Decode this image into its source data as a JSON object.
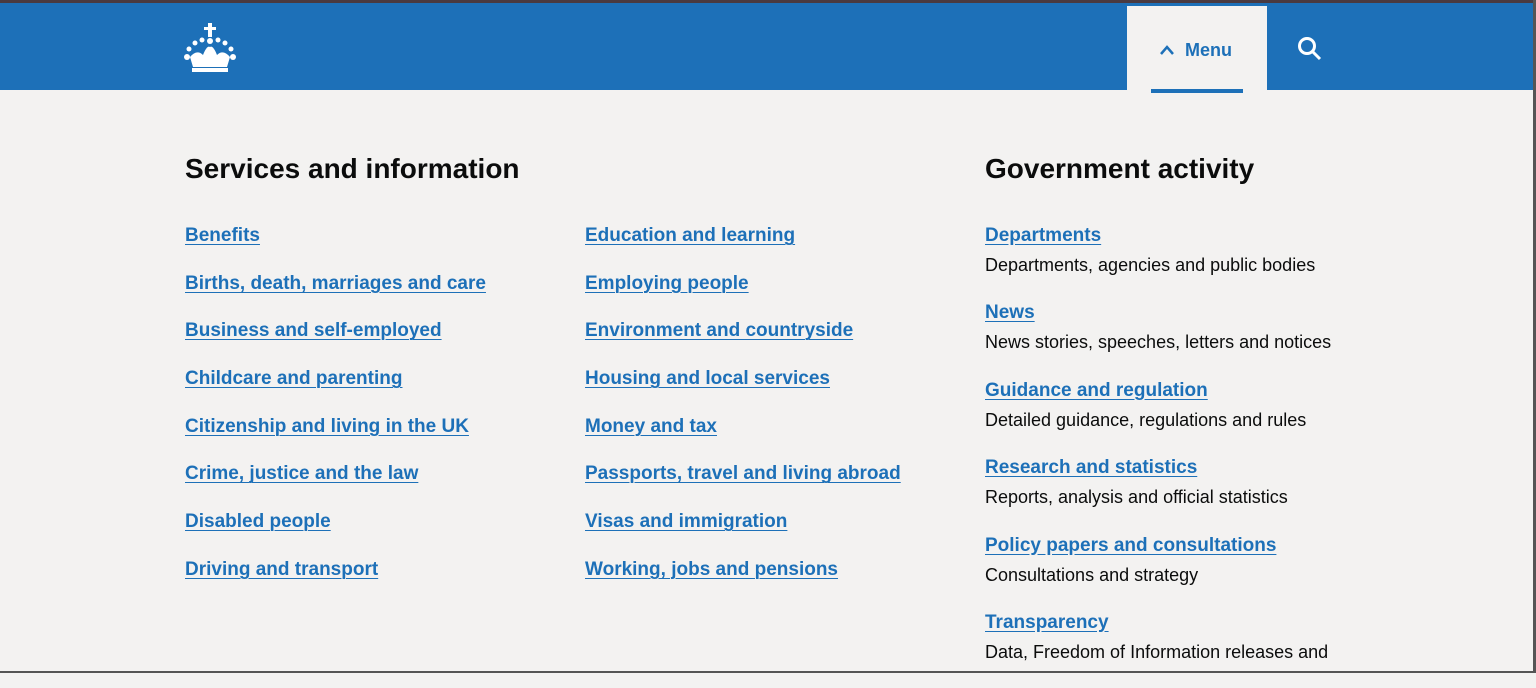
{
  "header": {
    "logo_icon": "crown-icon",
    "menu_label": "Menu",
    "menu_icon": "chevron-up-icon",
    "search_icon": "search-icon",
    "brand_color": "#1d70b8"
  },
  "services": {
    "heading": "Services and information",
    "column1": [
      "Benefits",
      "Births, death, marriages and care",
      "Business and self-employed",
      "Childcare and parenting",
      "Citizenship and living in the UK",
      "Crime, justice and the law",
      "Disabled people",
      "Driving and transport"
    ],
    "column2": [
      "Education and learning",
      "Employing people",
      "Environment and countryside",
      "Housing and local services",
      "Money and tax",
      "Passports, travel and living abroad",
      "Visas and immigration",
      "Working, jobs and pensions"
    ]
  },
  "activity": {
    "heading": "Government activity",
    "items": [
      {
        "label": "Departments",
        "desc": "Departments, agencies and public bodies"
      },
      {
        "label": "News",
        "desc": "News stories, speeches, letters and notices"
      },
      {
        "label": "Guidance and regulation",
        "desc": "Detailed guidance, regulations and rules"
      },
      {
        "label": "Research and statistics",
        "desc": "Reports, analysis and official statistics"
      },
      {
        "label": "Policy papers and consultations",
        "desc": "Consultations and strategy"
      },
      {
        "label": "Transparency",
        "desc": "Data, Freedom of Information releases and"
      }
    ]
  }
}
